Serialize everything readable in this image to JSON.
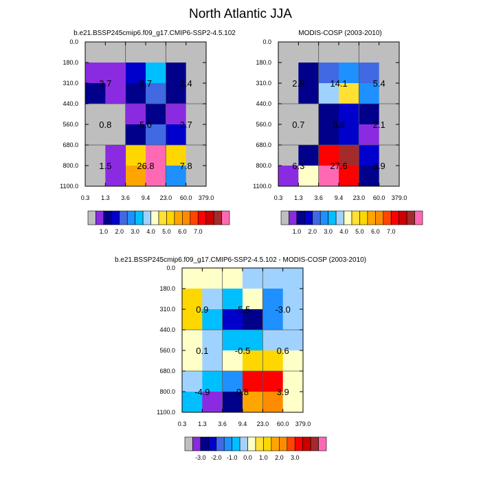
{
  "title": "North Atlantic JJA",
  "chart_data": [
    {
      "type": "heatmap",
      "title": "b.e21.BSSP245cmip6.f09_g17.CMIP6-SSP2-4.5.102",
      "x_ticks": [
        "0.3",
        "1.3",
        "3.6",
        "9.4",
        "23.0",
        "60.0",
        "379.0"
      ],
      "y_ticks": [
        "0.0",
        "180.0",
        "310.0",
        "440.0",
        "560.0",
        "680.0",
        "800.0",
        "1100.0"
      ],
      "cells": [
        [
          "#BEBEBE",
          "#BEBEBE",
          "#BEBEBE",
          "#BEBEBE",
          "#BEBEBE",
          "#BEBEBE"
        ],
        [
          "#8A2BE2",
          "#8A2BE2",
          "#0000CD",
          "#00BFFF",
          "#00008B",
          "#BEBEBE"
        ],
        [
          "#00008B",
          "#8A2BE2",
          "#00008B",
          "#4169E1",
          "#00008B",
          "#BEBEBE"
        ],
        [
          "#BEBEBE",
          "#BEBEBE",
          "#8A2BE2",
          "#00008B",
          "#8A2BE2",
          "#BEBEBE"
        ],
        [
          "#BEBEBE",
          "#BEBEBE",
          "#00008B",
          "#4169E1",
          "#0000CD",
          "#BEBEBE"
        ],
        [
          "#BEBEBE",
          "#8A2BE2",
          "#FFD700",
          "#FF69B4",
          "#FFD700",
          "#BEBEBE"
        ],
        [
          "#BEBEBE",
          "#8A2BE2",
          "#FFA500",
          "#FF69B4",
          "#1E90FF",
          "#BEBEBE"
        ]
      ],
      "annotations": [
        {
          "text": "3.7",
          "col": 0.5,
          "row": 1
        },
        {
          "text": "8.7",
          "col": 2.5,
          "row": 1
        },
        {
          "text": "2.4",
          "col": 4.5,
          "row": 1
        },
        {
          "text": "0.8",
          "col": 0.5,
          "row": 3
        },
        {
          "text": "5.0",
          "col": 2.5,
          "row": 3
        },
        {
          "text": "2.7",
          "col": 4.5,
          "row": 3
        },
        {
          "text": "1.5",
          "col": 0.5,
          "row": 5
        },
        {
          "text": "26.8",
          "col": 2.5,
          "row": 5
        },
        {
          "text": "7.8",
          "col": 4.5,
          "row": 5
        }
      ],
      "colorbar": {
        "colors": [
          "#BEBEBE",
          "#8A2BE2",
          "#00008B",
          "#0000CD",
          "#4169E1",
          "#1E90FF",
          "#00BFFF",
          "#A0D2FF",
          "#FFFFC8",
          "#FFE033",
          "#FFD700",
          "#FFA500",
          "#FF8C00",
          "#FF4500",
          "#FF0000",
          "#CC0000",
          "#A52A2A",
          "#FF69B4"
        ],
        "labels": [
          {
            "text": "1.0",
            "boundary": 2
          },
          {
            "text": "2.0",
            "boundary": 4
          },
          {
            "text": "3.0",
            "boundary": 6
          },
          {
            "text": "4.0",
            "boundary": 8
          },
          {
            "text": "5.0",
            "boundary": 10
          },
          {
            "text": "6.0",
            "boundary": 12
          },
          {
            "text": "7.0",
            "boundary": 14
          }
        ]
      }
    },
    {
      "type": "heatmap",
      "title": "MODIS-COSP (2003-2010)",
      "x_ticks": [
        "0.3",
        "1.3",
        "3.6",
        "9.4",
        "23.0",
        "60.0",
        "379.0"
      ],
      "y_ticks": [
        "0.0",
        "180.0",
        "310.0",
        "440.0",
        "560.0",
        "680.0",
        "800.0",
        "1100.0"
      ],
      "cells": [
        [
          "#BEBEBE",
          "#BEBEBE",
          "#BEBEBE",
          "#BEBEBE",
          "#BEBEBE",
          "#BEBEBE"
        ],
        [
          "#BEBEBE",
          "#00008B",
          "#4169E1",
          "#1E90FF",
          "#4169E1",
          "#BEBEBE"
        ],
        [
          "#BEBEBE",
          "#00008B",
          "#A0D2FF",
          "#FFE033",
          "#1E90FF",
          "#BEBEBE"
        ],
        [
          "#BEBEBE",
          "#BEBEBE",
          "#00008B",
          "#0000CD",
          "#00008B",
          "#BEBEBE"
        ],
        [
          "#BEBEBE",
          "#BEBEBE",
          "#00008B",
          "#0000CD",
          "#8A2BE2",
          "#BEBEBE"
        ],
        [
          "#BEBEBE",
          "#00008B",
          "#FF0000",
          "#A52A2A",
          "#0000CD",
          "#BEBEBE"
        ],
        [
          "#8A2BE2",
          "#FFFFC8",
          "#FF69B4",
          "#FF0000",
          "#00008B",
          "#BEBEBE"
        ]
      ],
      "annotations": [
        {
          "text": "2.8",
          "col": 0.5,
          "row": 1
        },
        {
          "text": "14.1",
          "col": 2.5,
          "row": 1
        },
        {
          "text": "5.4",
          "col": 4.5,
          "row": 1
        },
        {
          "text": "0.7",
          "col": 0.5,
          "row": 3
        },
        {
          "text": "5.6",
          "col": 2.5,
          "row": 3
        },
        {
          "text": "2.1",
          "col": 4.5,
          "row": 3
        },
        {
          "text": "6.3",
          "col": 0.5,
          "row": 5
        },
        {
          "text": "27.6",
          "col": 2.5,
          "row": 5
        },
        {
          "text": "3.9",
          "col": 4.5,
          "row": 5
        }
      ],
      "colorbar": {
        "colors": [
          "#BEBEBE",
          "#8A2BE2",
          "#00008B",
          "#0000CD",
          "#4169E1",
          "#1E90FF",
          "#00BFFF",
          "#A0D2FF",
          "#FFFFC8",
          "#FFE033",
          "#FFD700",
          "#FFA500",
          "#FF8C00",
          "#FF4500",
          "#FF0000",
          "#CC0000",
          "#A52A2A",
          "#FF69B4"
        ],
        "labels": [
          {
            "text": "1.0",
            "boundary": 2
          },
          {
            "text": "2.0",
            "boundary": 4
          },
          {
            "text": "3.0",
            "boundary": 6
          },
          {
            "text": "4.0",
            "boundary": 8
          },
          {
            "text": "5.0",
            "boundary": 10
          },
          {
            "text": "6.0",
            "boundary": 12
          },
          {
            "text": "7.0",
            "boundary": 14
          }
        ]
      }
    },
    {
      "type": "heatmap",
      "title": "b.e21.BSSP245cmip6.f09_g17.CMIP6-SSP2-4.5.102 - MODIS-COSP (2003-2010)",
      "x_ticks": [
        "0.3",
        "1.3",
        "3.6",
        "9.4",
        "23.0",
        "60.0",
        "379.0"
      ],
      "y_ticks": [
        "0.0",
        "180.0",
        "310.0",
        "440.0",
        "560.0",
        "680.0",
        "800.0",
        "1100.0"
      ],
      "cells": [
        [
          "#FFFFC8",
          "#FFFFC8",
          "#FFFFC8",
          "#A0D2FF",
          "#A0D2FF",
          "#A0D2FF"
        ],
        [
          "#FFD700",
          "#A0D2FF",
          "#00BFFF",
          "#FFFFC8",
          "#1E90FF",
          "#A0D2FF"
        ],
        [
          "#FFD700",
          "#00BFFF",
          "#0000CD",
          "#00008B",
          "#1E90FF",
          "#A0D2FF"
        ],
        [
          "#FFFFC8",
          "#A0D2FF",
          "#00BFFF",
          "#00BFFF",
          "#A0D2FF",
          "#A0D2FF"
        ],
        [
          "#FFFFC8",
          "#A0D2FF",
          "#FFFFC8",
          "#FFD700",
          "#FFD700",
          "#FFFFC8"
        ],
        [
          "#A0D2FF",
          "#00BFFF",
          "#1E90FF",
          "#FF0000",
          "#FF0000",
          "#FFFFC8"
        ],
        [
          "#00BFFF",
          "#8A2BE2",
          "#00008B",
          "#FFA500",
          "#FF8C00",
          "#FFFFC8"
        ]
      ],
      "annotations": [
        {
          "text": "0.9",
          "col": 0.5,
          "row": 1
        },
        {
          "text": "-5.5",
          "col": 2.5,
          "row": 1
        },
        {
          "text": "-3.0",
          "col": 4.5,
          "row": 1
        },
        {
          "text": "0.1",
          "col": 0.5,
          "row": 3
        },
        {
          "text": "-0.5",
          "col": 2.5,
          "row": 3
        },
        {
          "text": "0.6",
          "col": 4.5,
          "row": 3
        },
        {
          "text": "-4.9",
          "col": 0.5,
          "row": 5
        },
        {
          "text": "0.8",
          "col": 2.5,
          "row": 5
        },
        {
          "text": "3.9",
          "col": 4.5,
          "row": 5
        }
      ],
      "colorbar": {
        "colors": [
          "#BEBEBE",
          "#8A2BE2",
          "#00008B",
          "#0000CD",
          "#4169E1",
          "#1E90FF",
          "#00BFFF",
          "#A0D2FF",
          "#FFFFC8",
          "#FFE033",
          "#FFD700",
          "#FFA500",
          "#FF8C00",
          "#FF4500",
          "#FF0000",
          "#CC0000",
          "#A52A2A",
          "#FF69B4"
        ],
        "labels": [
          {
            "text": "-3.0",
            "boundary": 2
          },
          {
            "text": "-2.0",
            "boundary": 4
          },
          {
            "text": "-1.0",
            "boundary": 6
          },
          {
            "text": "0.0",
            "boundary": 8
          },
          {
            "text": "1.0",
            "boundary": 10
          },
          {
            "text": "2.0",
            "boundary": 12
          },
          {
            "text": "3.0",
            "boundary": 14
          }
        ]
      }
    }
  ]
}
